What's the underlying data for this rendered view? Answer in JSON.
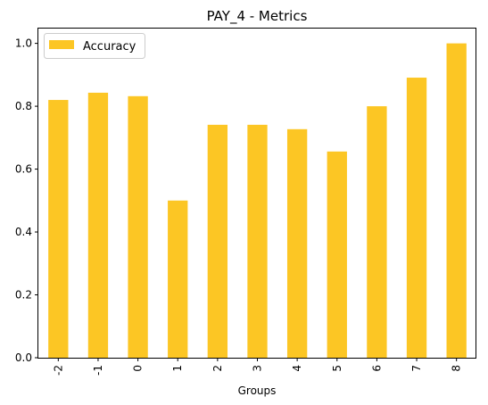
{
  "chart_data": {
    "type": "bar",
    "title": "PAY_4 - Metrics",
    "xlabel": "Groups",
    "ylabel": "",
    "categories": [
      "-2",
      "-1",
      "0",
      "1",
      "2",
      "3",
      "4",
      "5",
      "6",
      "7",
      "8"
    ],
    "series": [
      {
        "name": "Accuracy",
        "color": "#fcc624",
        "values": [
          0.82,
          0.843,
          0.832,
          0.5,
          0.741,
          0.741,
          0.727,
          0.656,
          0.8,
          0.891,
          1.0
        ]
      }
    ],
    "ylim": [
      0,
      1.05
    ],
    "yticks": [
      "0.0",
      "0.2",
      "0.4",
      "0.6",
      "0.8",
      "1.0"
    ],
    "grid": false,
    "legend_position": "top-left"
  }
}
